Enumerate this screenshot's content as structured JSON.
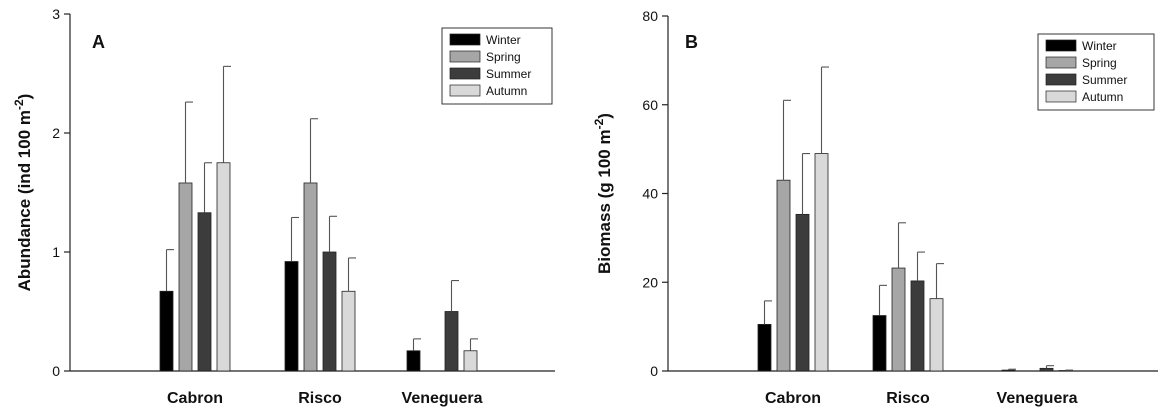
{
  "chart_data": [
    {
      "type": "bar",
      "panel_label": "A",
      "ylabel": "Abundance (ind 100 m-2)",
      "ylabel_parts": {
        "text": "Abundance (ind 100 m",
        "sup": "-2",
        "close": ")"
      },
      "categories": [
        "Cabron",
        "Risco",
        "Veneguera"
      ],
      "ylim": [
        0,
        3
      ],
      "yticks": [
        0,
        1,
        2,
        3
      ],
      "legend_position": "top-right",
      "series": [
        {
          "name": "Winter",
          "color": "#000000",
          "values": [
            0.67,
            0.92,
            0.17
          ],
          "errors": [
            0.35,
            0.37,
            0.1
          ]
        },
        {
          "name": "Spring",
          "color": "#a6a6a6",
          "values": [
            1.58,
            1.58,
            null
          ],
          "errors": [
            0.68,
            0.54,
            null
          ]
        },
        {
          "name": "Summer",
          "color": "#3c3c3c",
          "values": [
            1.33,
            1.0,
            0.5
          ],
          "errors": [
            0.42,
            0.3,
            0.26
          ]
        },
        {
          "name": "Autumn",
          "color": "#d9d9d9",
          "values": [
            1.75,
            0.67,
            0.17
          ],
          "errors": [
            0.81,
            0.28,
            0.1
          ]
        }
      ]
    },
    {
      "type": "bar",
      "panel_label": "B",
      "ylabel": "Biomass (g 100 m-2)",
      "ylabel_parts": {
        "text": "Biomass (g 100 m",
        "sup": "-2",
        "close": ")"
      },
      "categories": [
        "Cabron",
        "Risco",
        "Veneguera"
      ],
      "ylim": [
        0,
        80
      ],
      "yticks": [
        0,
        20,
        40,
        60,
        80
      ],
      "legend_position": "top-right",
      "series": [
        {
          "name": "Winter",
          "color": "#000000",
          "values": [
            10.5,
            12.5,
            0.2
          ],
          "errors": [
            5.3,
            6.8,
            0.2
          ]
        },
        {
          "name": "Spring",
          "color": "#a6a6a6",
          "values": [
            43.0,
            23.2,
            null
          ],
          "errors": [
            18.0,
            10.2,
            null
          ]
        },
        {
          "name": "Summer",
          "color": "#3c3c3c",
          "values": [
            35.3,
            20.3,
            0.6
          ],
          "errors": [
            13.7,
            6.5,
            0.6
          ]
        },
        {
          "name": "Autumn",
          "color": "#d9d9d9",
          "values": [
            49.0,
            16.3,
            0.1
          ],
          "errors": [
            19.5,
            7.9,
            0.1
          ]
        }
      ]
    }
  ]
}
